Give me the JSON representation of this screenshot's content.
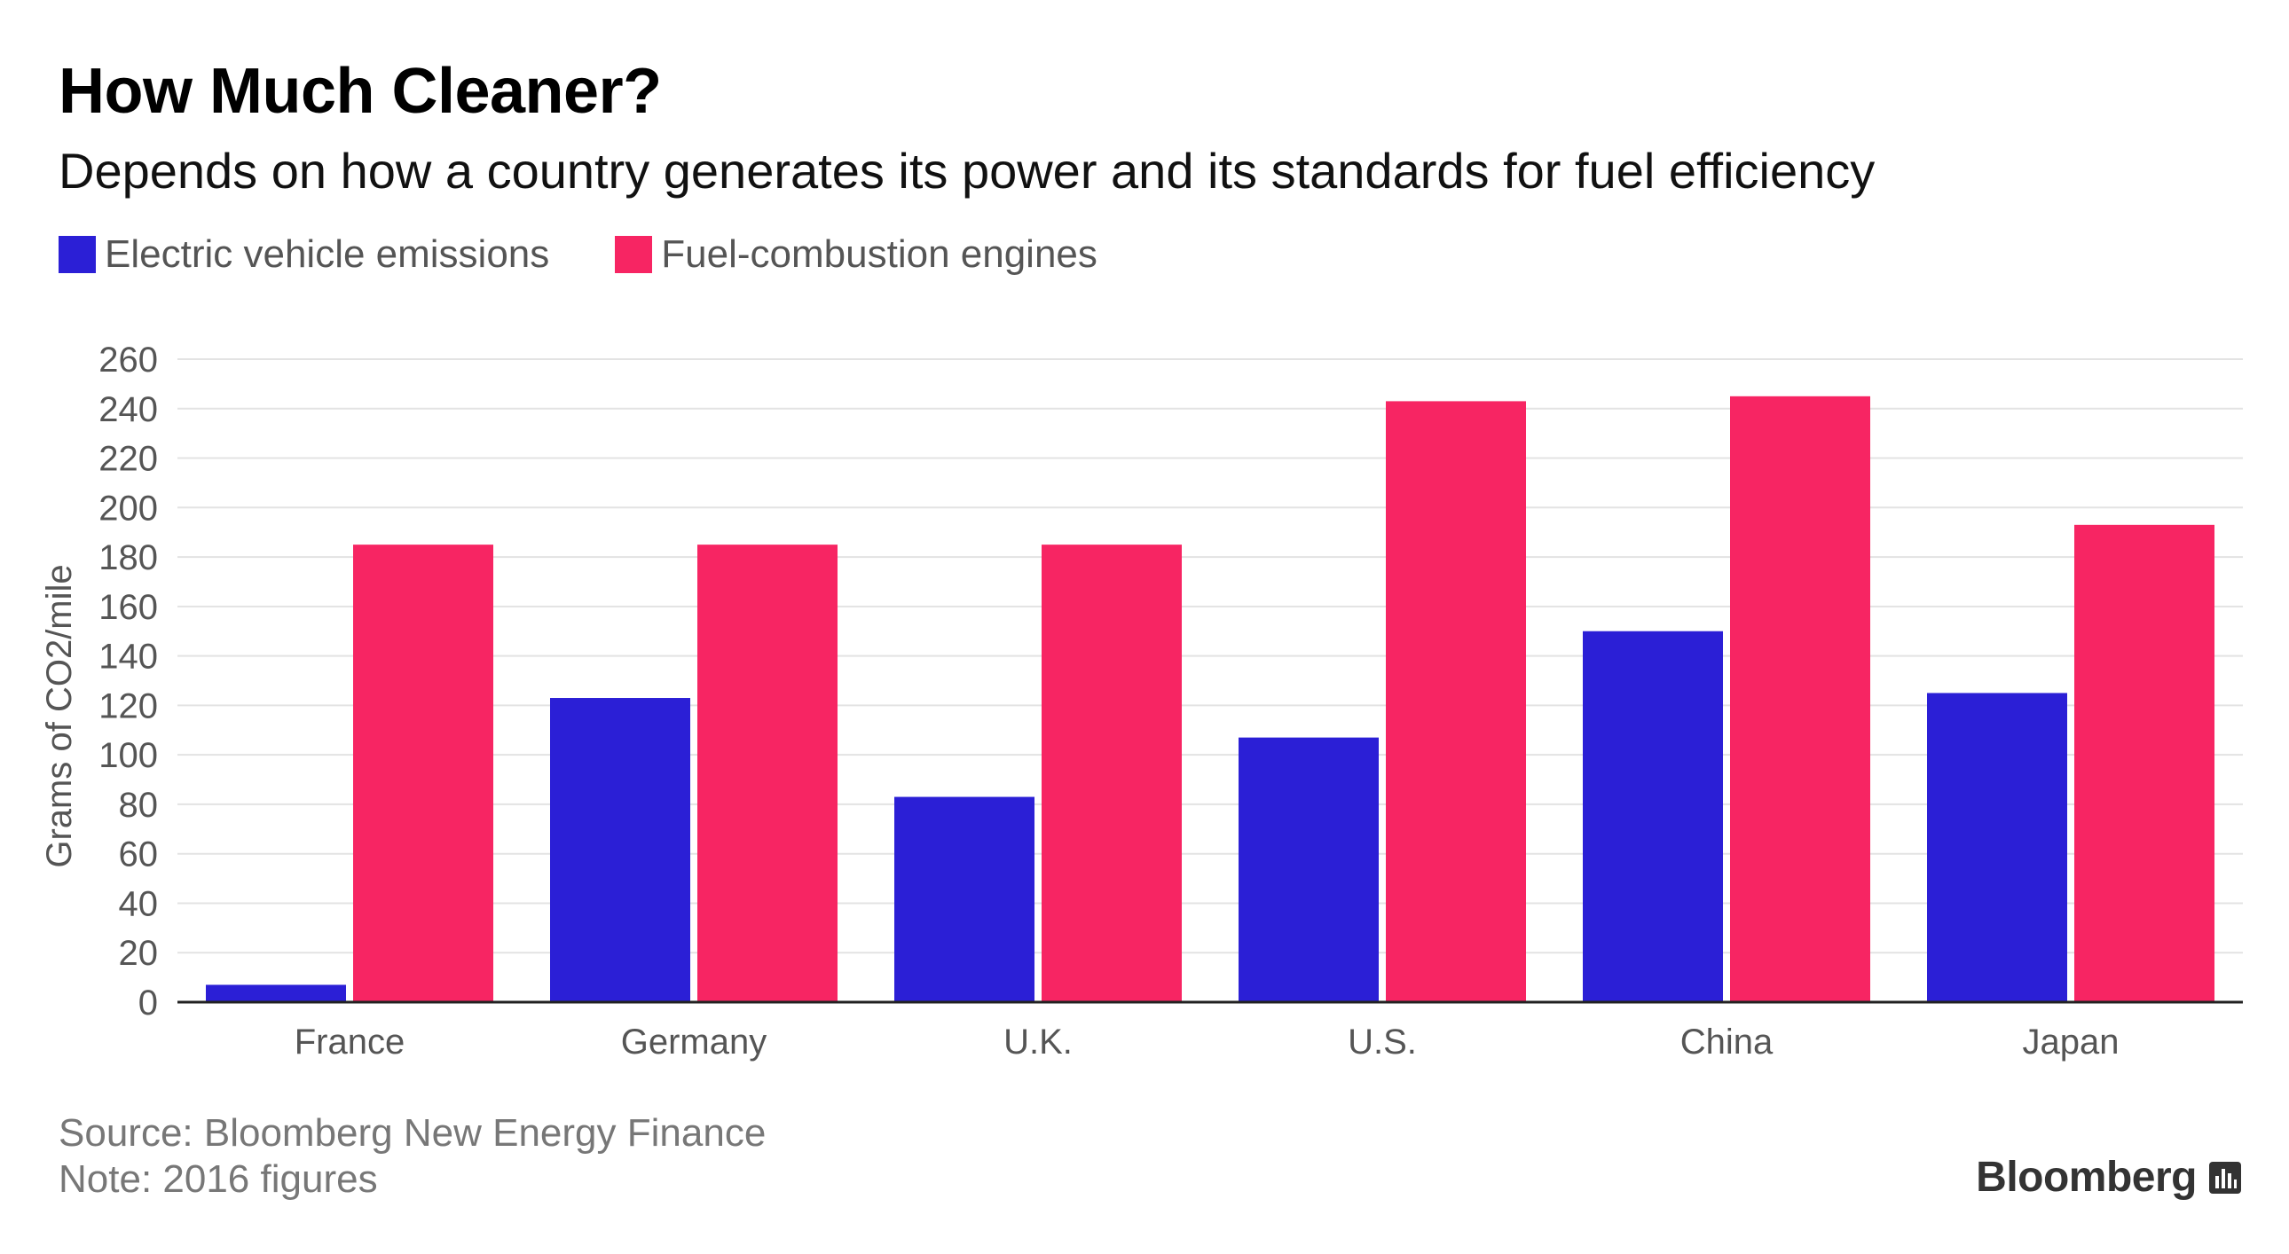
{
  "header": {
    "title": "How Much Cleaner?",
    "subtitle": "Depends on how a country generates its power and its standards for fuel efficiency"
  },
  "legend": {
    "items": [
      {
        "label": "Electric vehicle emissions",
        "color": "#2b1fd6"
      },
      {
        "label": "Fuel-combustion engines",
        "color": "#f72563"
      }
    ]
  },
  "chart_data": {
    "type": "bar",
    "title": "How Much Cleaner?",
    "subtitle": "Depends on how a country generates its power and its standards for fuel efficiency",
    "xlabel": "",
    "ylabel": "Grams of CO2/mile",
    "ylim": [
      0,
      260
    ],
    "yticks": [
      0,
      20,
      40,
      60,
      80,
      100,
      120,
      140,
      160,
      180,
      200,
      220,
      240,
      260
    ],
    "grid": true,
    "legend_position": "top-left",
    "categories": [
      "France",
      "Germany",
      "U.K.",
      "U.S.",
      "China",
      "Japan"
    ],
    "series": [
      {
        "name": "Electric vehicle emissions",
        "color": "#2b1fd6",
        "values": [
          7,
          123,
          83,
          107,
          150,
          125
        ]
      },
      {
        "name": "Fuel-combustion engines",
        "color": "#f72563",
        "values": [
          185,
          185,
          185,
          243,
          245,
          193
        ]
      }
    ]
  },
  "footer": {
    "source": "Source: Bloomberg New Energy Finance",
    "note": "Note: 2016 figures",
    "brand": "Bloomberg"
  }
}
